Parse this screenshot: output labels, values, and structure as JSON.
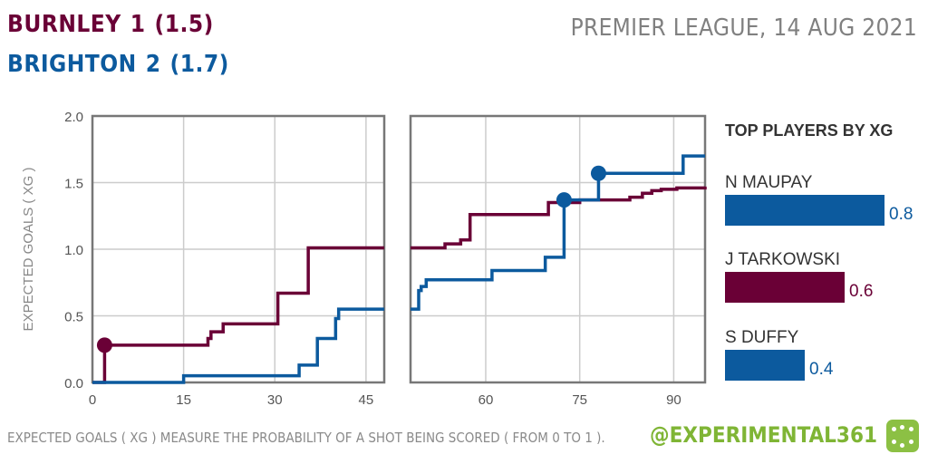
{
  "header": {
    "home": {
      "team": "BURNLEY",
      "goals": "1",
      "xg": "(1.5)"
    },
    "away": {
      "team": "BRIGHTON",
      "goals": "2",
      "xg": "(1.7)"
    },
    "match_info": "PREMIER LEAGUE, 14 AUG 2021"
  },
  "footer": {
    "note": "EXPECTED GOALS ( XG ) MEASURE THE PROBABILITY OF A SHOT BEING SCORED ( FROM 0 TO 1 ).",
    "brand": "@EXPERIMENTAL361"
  },
  "colors": {
    "home": "#6a0036",
    "away": "#0c5a9e",
    "grid": "#cccccc",
    "frame": "#777777",
    "brand": "#7fb535"
  },
  "icons": {
    "brand_logo": "pitch-logo-icon"
  },
  "chart_data": [
    {
      "type": "line",
      "subtype": "step",
      "ylabel": "EXPECTED GOALS ( XG )",
      "ylim": [
        0,
        2.0
      ],
      "yticks": [
        "0.0",
        "0.5",
        "1.0",
        "1.5",
        "2.0"
      ],
      "grid": true,
      "panels": [
        {
          "xlim": [
            0,
            48
          ],
          "xticks": [
            0,
            15,
            30,
            45
          ]
        },
        {
          "xlim": [
            48,
            95
          ],
          "xticks": [
            60,
            75,
            90
          ]
        }
      ],
      "series": [
        {
          "name": "BURNLEY",
          "points": [
            [
              0,
              0
            ],
            [
              2,
              0.28
            ],
            [
              18,
              0.28
            ],
            [
              19,
              0.33
            ],
            [
              19.5,
              0.38
            ],
            [
              21.5,
              0.44
            ],
            [
              30.5,
              0.67
            ],
            [
              35.5,
              1.01
            ],
            [
              48,
              1.01
            ],
            [
              53.5,
              1.04
            ],
            [
              56,
              1.07
            ],
            [
              57.5,
              1.26
            ],
            [
              70,
              1.35
            ],
            [
              75,
              1.37
            ],
            [
              83,
              1.39
            ],
            [
              85,
              1.42
            ],
            [
              86.5,
              1.44
            ],
            [
              88,
              1.45
            ],
            [
              90.5,
              1.46
            ],
            [
              95,
              1.47
            ]
          ],
          "goals": [
            2
          ]
        },
        {
          "name": "BRIGHTON",
          "points": [
            [
              0,
              0
            ],
            [
              15,
              0.05
            ],
            [
              34,
              0.13
            ],
            [
              37,
              0.33
            ],
            [
              40,
              0.48
            ],
            [
              40.5,
              0.55
            ],
            [
              48,
              0.55
            ],
            [
              49.3,
              0.69
            ],
            [
              49.7,
              0.72
            ],
            [
              50.5,
              0.77
            ],
            [
              61,
              0.84
            ],
            [
              69.5,
              0.94
            ],
            [
              72.5,
              1.37
            ],
            [
              78,
              1.57
            ],
            [
              91.5,
              1.7
            ],
            [
              95,
              1.7
            ]
          ],
          "goals": [
            72.5,
            78
          ]
        }
      ]
    },
    {
      "type": "bar",
      "title": "TOP PLAYERS BY XG",
      "categories": [
        "N MAUPAY",
        "J TARKOWSKI",
        "S DUFFY"
      ],
      "values": [
        0.8,
        0.6,
        0.4
      ],
      "value_labels": [
        "0.8",
        "0.6",
        "0.4"
      ],
      "team": [
        "BRIGHTON",
        "BURNLEY",
        "BRIGHTON"
      ]
    }
  ]
}
